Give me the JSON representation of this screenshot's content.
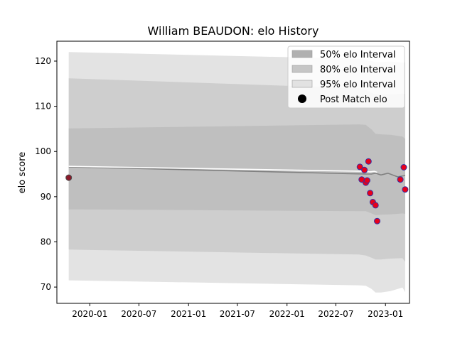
{
  "chart_data": {
    "type": "line",
    "title": "William BEAUDON: elo History",
    "xlabel": "",
    "ylabel": "elo score",
    "x_axis": {
      "type": "date",
      "range": [
        "2019-09-01",
        "2023-03-31"
      ],
      "tick_labels": [
        "2020-01",
        "2020-07",
        "2021-01",
        "2021-07",
        "2022-01",
        "2022-07",
        "2023-01"
      ],
      "tick_dates": [
        "2020-01-01",
        "2020-07-01",
        "2021-01-01",
        "2021-07-01",
        "2022-01-01",
        "2022-07-01",
        "2023-01-01"
      ]
    },
    "y_axis": {
      "range": [
        66.4,
        124.4
      ],
      "ticks": [
        70,
        80,
        90,
        100,
        110,
        120
      ]
    },
    "grid": false,
    "legend_placement": "top-right",
    "legend": [
      {
        "label": "50% elo Interval",
        "kind": "band",
        "color": "#b0b0b0"
      },
      {
        "label": "80% elo Interval",
        "kind": "band",
        "color": "#c6c6c6"
      },
      {
        "label": "95% elo Interval",
        "kind": "band",
        "color": "#e2e2e2"
      },
      {
        "label": "Post Match elo",
        "kind": "marker",
        "color": "#000000"
      }
    ],
    "colors": {
      "band_95": "#e3e3e3",
      "band_80": "#cecece",
      "band_50": "#bfbfbf",
      "mean_line": "#808080",
      "pre_line": "#ffffff",
      "marker_fill": "#e8001a",
      "marker_edge": "#3a2fa0",
      "first_marker_fill": "#8b1a2a"
    },
    "bands": {
      "dates": [
        "2019-10-15",
        "2022-09-25",
        "2022-10-20",
        "2022-11-10",
        "2022-11-25",
        "2022-12-15",
        "2023-01-20",
        "2023-03-05",
        "2023-03-15"
      ],
      "p95_upper": [
        122.0,
        120.5,
        120.2,
        120.0,
        119.8,
        119.8,
        119.9,
        119.7,
        119.7
      ],
      "p95_lower": [
        71.5,
        70.4,
        70.3,
        69.6,
        68.8,
        68.8,
        69.1,
        69.9,
        68.9
      ],
      "p80_upper": [
        116.2,
        114.0,
        113.6,
        113.0,
        112.6,
        112.6,
        112.6,
        112.8,
        112.7
      ],
      "p80_lower": [
        78.3,
        77.2,
        77.0,
        76.5,
        76.1,
        76.1,
        76.3,
        76.4,
        75.6
      ],
      "p50_upper": [
        105.1,
        106.0,
        105.9,
        104.9,
        103.9,
        103.8,
        103.7,
        103.3,
        102.8
      ],
      "p50_lower": [
        87.2,
        86.8,
        86.8,
        86.3,
        85.9,
        86.0,
        86.1,
        86.3,
        86.2
      ]
    },
    "mean_series": {
      "dates": [
        "2019-10-15",
        "2022-10-20",
        "2022-11-10",
        "2022-11-25",
        "2022-12-15",
        "2023-01-10",
        "2023-02-15",
        "2023-03-15"
      ],
      "values": [
        96.6,
        95.0,
        95.0,
        95.2,
        94.8,
        95.2,
        94.4,
        94.7
      ]
    },
    "pre_series": {
      "dates": [
        "2019-10-15",
        "2022-10-20",
        "2022-11-05",
        "2022-11-20",
        "2022-12-01"
      ],
      "values": [
        96.7,
        95.6,
        95.5,
        95.6,
        95.4
      ]
    },
    "points": [
      {
        "date": "2019-10-15",
        "elo": 94.2
      },
      {
        "date": "2022-09-28",
        "elo": 96.6
      },
      {
        "date": "2022-10-05",
        "elo": 93.8
      },
      {
        "date": "2022-10-15",
        "elo": 95.9
      },
      {
        "date": "2022-10-20",
        "elo": 93.1
      },
      {
        "date": "2022-10-25",
        "elo": 93.6
      },
      {
        "date": "2022-10-30",
        "elo": 97.8
      },
      {
        "date": "2022-11-05",
        "elo": 90.8
      },
      {
        "date": "2022-11-15",
        "elo": 88.8
      },
      {
        "date": "2022-11-25",
        "elo": 88.1
      },
      {
        "date": "2022-12-01",
        "elo": 84.6
      },
      {
        "date": "2023-02-25",
        "elo": 93.8
      },
      {
        "date": "2023-03-10",
        "elo": 96.5
      },
      {
        "date": "2023-03-15",
        "elo": 91.6
      }
    ]
  }
}
